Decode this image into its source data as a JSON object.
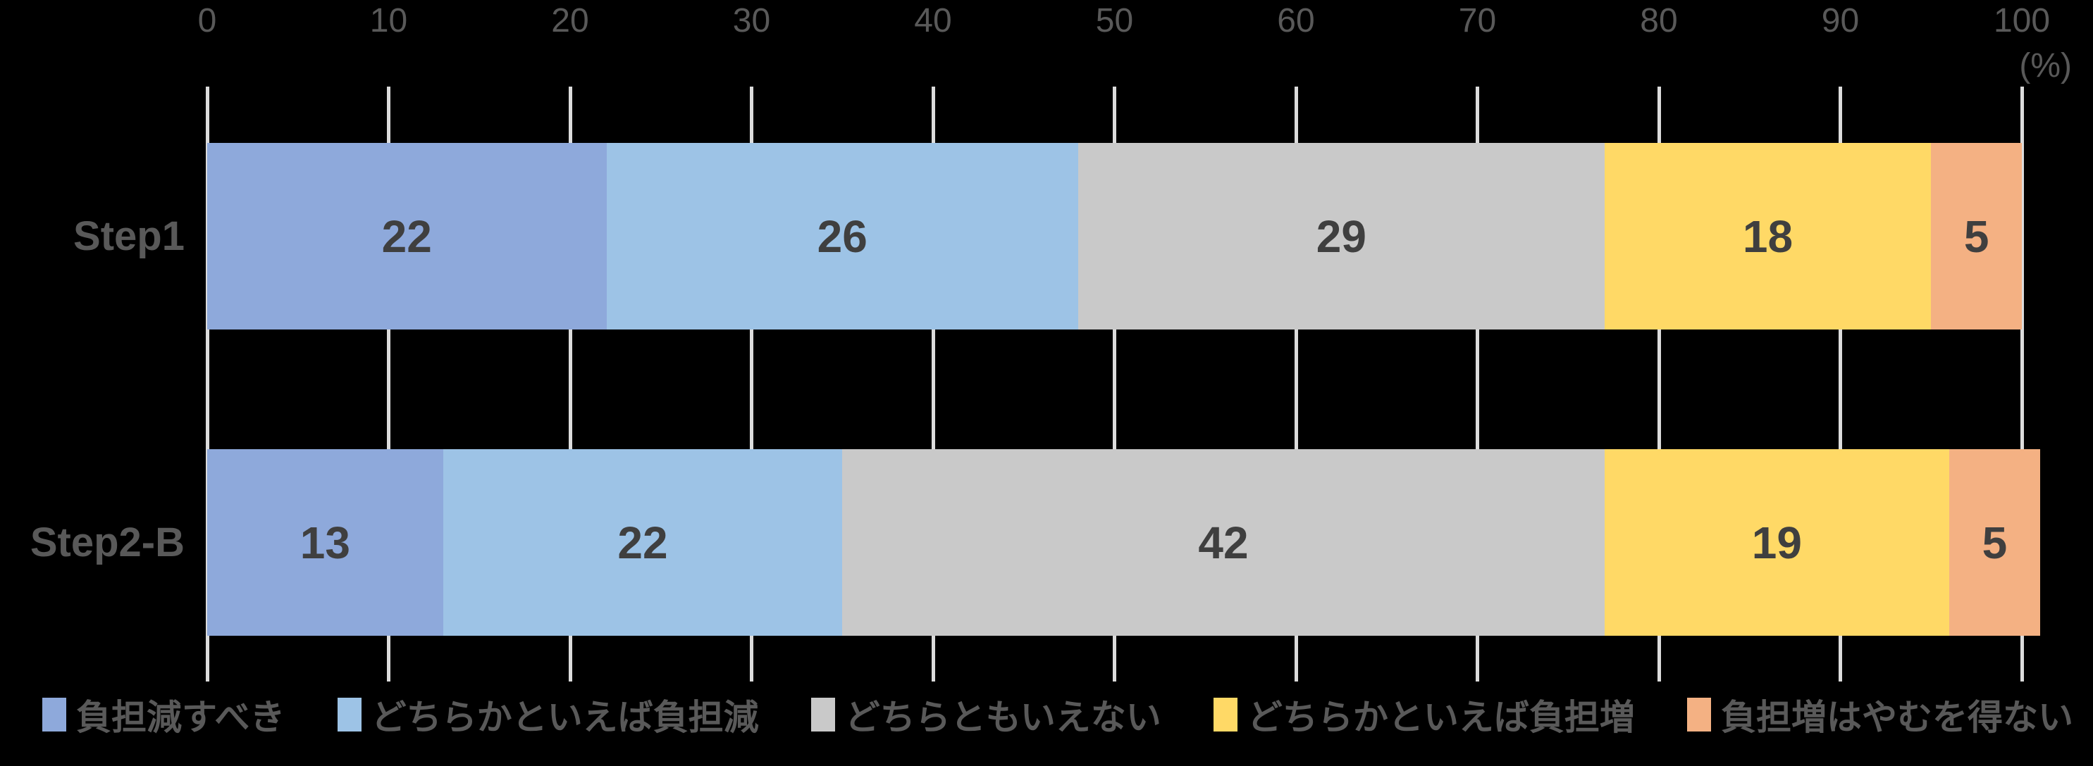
{
  "chart_data": {
    "type": "bar",
    "orientation": "horizontal",
    "stacked": true,
    "title": "",
    "categories": [
      "Step1",
      "Step2-B"
    ],
    "series": [
      {
        "name": "負担減すべき",
        "color": "#8EA9DB",
        "values": [
          22,
          13
        ]
      },
      {
        "name": "どちらかといえば負担減",
        "color": "#9DC3E6",
        "values": [
          26,
          22
        ]
      },
      {
        "name": "どちらともいえない",
        "color": "#C9C9C9",
        "values": [
          29,
          42
        ]
      },
      {
        "name": "どちらかといえば負担増",
        "color": "#FFD966",
        "values": [
          18,
          19
        ]
      },
      {
        "name": "負担増はやむを得ない",
        "color": "#F4B183",
        "values": [
          5,
          5
        ]
      }
    ],
    "x_axis": {
      "position": "top",
      "min": 0,
      "max": 100,
      "tick_interval": 10,
      "ticks": [
        0,
        10,
        20,
        30,
        40,
        50,
        60,
        70,
        80,
        90,
        100
      ],
      "unit_label": "(%)"
    },
    "grid": true,
    "gridline_color": "#DCDCDC",
    "legend_position": "bottom",
    "text_colors": {
      "axis": "#595959",
      "category": "#595959",
      "data_label": "#3F3F3F",
      "legend": "#595959"
    },
    "background_color": "#000000"
  }
}
